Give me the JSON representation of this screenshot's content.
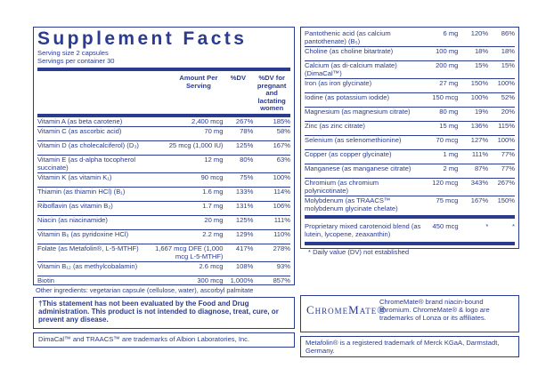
{
  "header": {
    "title": "Supplement Facts",
    "serving_size": "Serving size  2 capsules",
    "servings": "Servings per container  30"
  },
  "columns": [
    "Amount Per Serving",
    "%DV",
    "%DV for pregnant and lactating women"
  ],
  "left_rows": [
    [
      "Vitamin A (as beta carotene)",
      "2,400 mcg",
      "267%",
      "185%"
    ],
    [
      "Vitamin C (as ascorbic acid)",
      "70 mg",
      "78%",
      "58%"
    ],
    [
      "Vitamin D (as cholecalciferol) (D₃)",
      "25 mcg (1,000 IU)",
      "125%",
      "167%"
    ],
    [
      "Vitamin E (as d-alpha tocopherol succinate)",
      "12 mg",
      "80%",
      "63%"
    ],
    [
      "Vitamin K (as vitamin K₁)",
      "90 mcg",
      "75%",
      "100%"
    ],
    [
      "Thiamin (as thiamin HCl) (B₁)",
      "1.6 mg",
      "133%",
      "114%"
    ],
    [
      "Riboflavin (as vitamin B₂)",
      "1.7 mg",
      "131%",
      "106%"
    ],
    [
      "Niacin (as niacinamide)",
      "20 mg",
      "125%",
      "111%"
    ],
    [
      "Vitamin B₆ (as pyridoxine HCl)",
      "2.2 mg",
      "129%",
      "110%"
    ],
    [
      "Folate (as Metafolin®, L-5-MTHF)",
      "1,667 mcg DFE (1,000 mcg L-5-MTHF)",
      "417%",
      "278%"
    ],
    [
      "Vitamin B₁₂ (as methylcobalamin)",
      "2.6 mcg",
      "108%",
      "93%"
    ],
    [
      "Biotin",
      "300 mcg",
      "1,000%",
      "857%"
    ]
  ],
  "right_rows": [
    [
      "Pantothenic acid (as calcium pantothenate) (B₅)",
      "6 mg",
      "120%",
      "86%"
    ],
    [
      "Choline (as choline bitartrate)",
      "100 mg",
      "18%",
      "18%"
    ],
    [
      "Calcium (as di-calcium malate) (DimaCal™)",
      "200 mg",
      "15%",
      "15%"
    ],
    [
      "Iron (as iron glycinate)",
      "27 mg",
      "150%",
      "100%"
    ],
    [
      "Iodine (as potassium iodide)",
      "150 mcg",
      "100%",
      "52%"
    ],
    [
      "Magnesium (as magnesium citrate)",
      "80 mg",
      "19%",
      "20%"
    ],
    [
      "Zinc (as zinc citrate)",
      "15 mg",
      "136%",
      "115%"
    ],
    [
      "Selenium (as selenomethionine)",
      "70 mcg",
      "127%",
      "100%"
    ],
    [
      "Copper (as copper glycinate)",
      "1 mg",
      "111%",
      "77%"
    ],
    [
      "Manganese (as manganese citrate)",
      "2 mg",
      "87%",
      "77%"
    ],
    [
      "Chromium (as chromium polynicotinate)",
      "120 mcg",
      "343%",
      "267%"
    ],
    [
      "Molybdenum (as TRAACS™ molybdenum glycinate chelate)",
      "75 mcg",
      "167%",
      "150%"
    ]
  ],
  "blend": [
    "Proprietary mixed carotenoid blend (as lutein, lycopene, zeaxanthin)",
    "450 mcg",
    "*",
    "*"
  ],
  "footnote": "* Daily value (DV) not established",
  "other_ingredients": "Other ingredients: vegetarian capsule (cellulose, water), ascorbyl palmitate",
  "disclaimer": "†This statement has not been evaluated by the Food and Drug administration. This product is not intended to diagnose, treat, cure, or prevent any disease.",
  "chromemate_logo": "ChromeMate®",
  "chromemate_text": "ChromeMate® brand niacin-bound chromium. ChromeMate® & logo are trademarks of Lonza or its affiliates.",
  "dimacal_note": "DimaCal™ and TRAACS™ are trademarks of Albion Laboratories, Inc.",
  "metafolin_note": "Metafolin® is a registered trademark of Merck KGaA, Darmstadt, Germany."
}
